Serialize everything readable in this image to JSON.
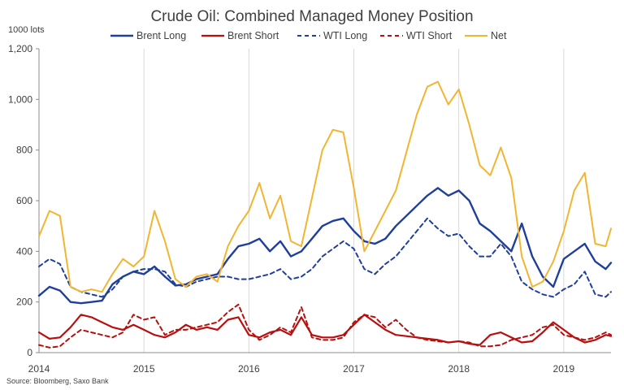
{
  "chart_data": {
    "type": "line",
    "title": "Crude Oil: Combined Managed Money Position",
    "ylabel": "1000 lots",
    "xlabel": "",
    "source": "Source: Bloomberg, Saxo Bank",
    "x_ticks": [
      "2014",
      "2015",
      "2016",
      "2017",
      "2018",
      "2019"
    ],
    "y_ticks": [
      "0",
      "200",
      "400",
      "600",
      "800",
      "1,000",
      "1,200"
    ],
    "xlim": [
      2014.0,
      2019.45
    ],
    "ylim": [
      0,
      1200
    ],
    "grid": "vertical",
    "legend_position": "top",
    "x": [
      2014.0,
      2014.1,
      2014.2,
      2014.3,
      2014.4,
      2014.5,
      2014.6,
      2014.7,
      2014.8,
      2014.9,
      2015.0,
      2015.1,
      2015.2,
      2015.3,
      2015.4,
      2015.5,
      2015.6,
      2015.7,
      2015.8,
      2015.9,
      2016.0,
      2016.1,
      2016.2,
      2016.3,
      2016.4,
      2016.5,
      2016.6,
      2016.7,
      2016.8,
      2016.9,
      2017.0,
      2017.1,
      2017.2,
      2017.3,
      2017.4,
      2017.5,
      2017.6,
      2017.7,
      2017.8,
      2017.9,
      2018.0,
      2018.1,
      2018.2,
      2018.3,
      2018.4,
      2018.5,
      2018.6,
      2018.7,
      2018.8,
      2018.9,
      2019.0,
      2019.1,
      2019.2,
      2019.3,
      2019.4,
      2019.45
    ],
    "series": [
      {
        "name": "Brent Long",
        "color": "#1f3f9a",
        "dash": "solid",
        "width": 2.4,
        "values": [
          225,
          260,
          245,
          200,
          195,
          200,
          205,
          270,
          300,
          320,
          310,
          340,
          300,
          265,
          270,
          290,
          300,
          310,
          370,
          420,
          430,
          450,
          400,
          440,
          380,
          400,
          450,
          500,
          520,
          530,
          480,
          440,
          430,
          450,
          500,
          540,
          580,
          620,
          650,
          620,
          640,
          600,
          510,
          480,
          440,
          400,
          510,
          380,
          300,
          260,
          370,
          400,
          430,
          360,
          330,
          355
        ]
      },
      {
        "name": "Brent Short",
        "color": "#b80f0f",
        "dash": "solid",
        "width": 2.2,
        "values": [
          80,
          55,
          60,
          100,
          150,
          140,
          120,
          100,
          90,
          110,
          90,
          70,
          60,
          80,
          110,
          90,
          100,
          90,
          130,
          140,
          70,
          60,
          80,
          90,
          70,
          140,
          70,
          60,
          60,
          70,
          110,
          150,
          120,
          90,
          70,
          65,
          60,
          55,
          50,
          40,
          45,
          35,
          30,
          70,
          80,
          60,
          40,
          45,
          80,
          120,
          90,
          60,
          40,
          50,
          70,
          65
        ]
      },
      {
        "name": "WTI Long",
        "color": "#1f3f9a",
        "dash": "5,4",
        "width": 2.0,
        "values": [
          340,
          370,
          350,
          260,
          240,
          230,
          220,
          250,
          300,
          320,
          330,
          330,
          320,
          270,
          260,
          280,
          290,
          300,
          300,
          290,
          290,
          300,
          310,
          330,
          290,
          300,
          330,
          380,
          410,
          440,
          410,
          330,
          310,
          350,
          380,
          430,
          480,
          530,
          490,
          460,
          470,
          420,
          380,
          380,
          430,
          380,
          280,
          250,
          230,
          220,
          250,
          270,
          320,
          230,
          220,
          240
        ]
      },
      {
        "name": "WTI Short",
        "color": "#b80f0f",
        "dash": "5,4",
        "width": 2.0,
        "values": [
          30,
          20,
          25,
          60,
          90,
          80,
          70,
          60,
          80,
          150,
          130,
          140,
          70,
          90,
          90,
          100,
          110,
          120,
          160,
          190,
          90,
          50,
          70,
          100,
          80,
          180,
          60,
          50,
          50,
          60,
          120,
          150,
          140,
          100,
          130,
          90,
          60,
          50,
          45,
          40,
          45,
          40,
          25,
          25,
          30,
          50,
          60,
          70,
          100,
          110,
          70,
          60,
          50,
          60,
          80,
          70
        ]
      },
      {
        "name": "Net",
        "color": "#f2b531",
        "dash": "solid",
        "width": 2.0,
        "values": [
          460,
          560,
          540,
          260,
          240,
          250,
          240,
          310,
          370,
          340,
          380,
          560,
          440,
          290,
          260,
          300,
          310,
          280,
          420,
          500,
          560,
          670,
          530,
          620,
          440,
          420,
          610,
          800,
          880,
          870,
          650,
          400,
          480,
          560,
          640,
          790,
          940,
          1050,
          1070,
          980,
          1040,
          900,
          740,
          700,
          810,
          690,
          380,
          260,
          280,
          360,
          480,
          640,
          710,
          430,
          420,
          490
        ]
      }
    ]
  }
}
